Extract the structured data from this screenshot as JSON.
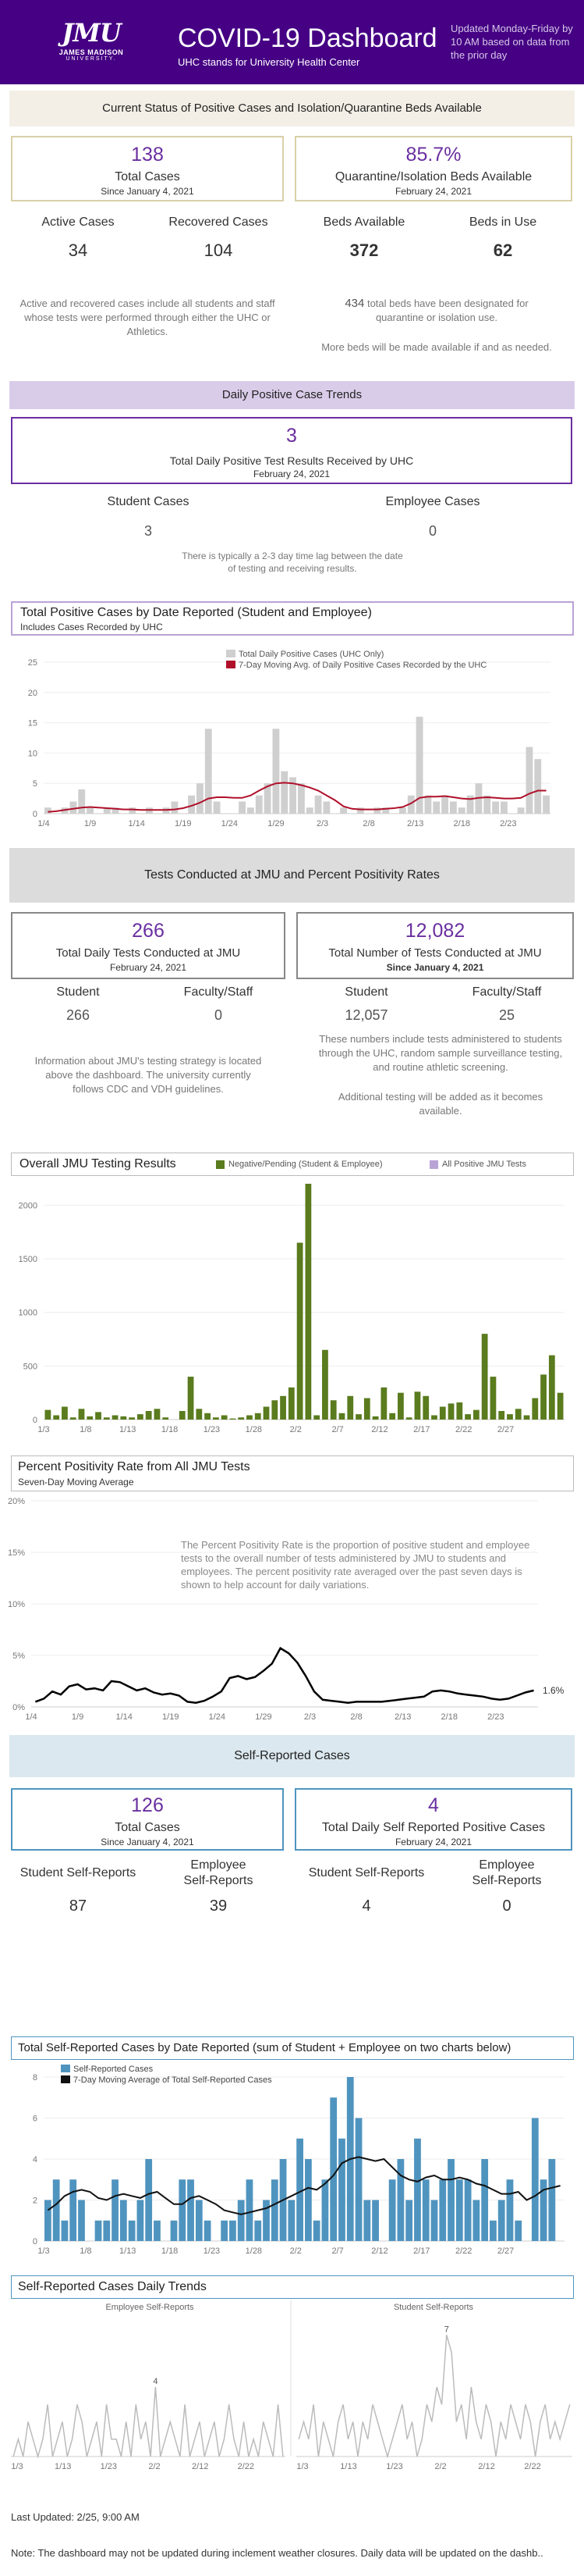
{
  "header": {
    "logo_main": "JMU",
    "logo_line1": "JAMES MADISON",
    "logo_line2": "UNIVERSITY.",
    "title": "COVID-19 Dashboard",
    "subtitle": "UHC stands for University Health Center",
    "updated": "Updated Monday-Friday by 10 AM based on data from the prior day"
  },
  "current_status": {
    "heading": "Current Status of Positive Cases and Isolation/Quarantine Beds Available",
    "total_cases": "138",
    "total_cases_label": "Total Cases",
    "total_cases_since": "Since January 4, 2021",
    "quarantine_pct": "85.7%",
    "quarantine_label": "Quarantine/Isolation Beds Available",
    "quarantine_date": "February 24, 2021",
    "active_label": "Active Cases",
    "active_value": "34",
    "recovered_label": "Recovered Cases",
    "recovered_value": "104",
    "beds_available_label": "Beds Available",
    "beds_available_value": "372",
    "beds_in_use_label": "Beds in Use",
    "beds_in_use_value": "62",
    "cases_note": "Active and recovered cases include all students and staff whose tests were performed through either the UHC or Athletics.",
    "beds_note_num": "434",
    "beds_note_text": " total beds have been designated for quarantine or isolation use.",
    "beds_note2": "More beds will be made available if and as needed."
  },
  "daily_trends": {
    "heading": "Daily Positive Case Trends",
    "value": "3",
    "label": "Total Daily Positive Test Results Received by UHC",
    "date": "February 24, 2021",
    "student_label": "Student Cases",
    "student_value": "3",
    "employee_label": "Employee Cases",
    "employee_value": "0",
    "note": "There is typically a 2-3 day time lag between the date of testing and receiving results."
  },
  "chart1": {
    "title": "Total Positive Cases by Date Reported (Student and Employee)",
    "subtitle": "Includes Cases Recorded by UHC",
    "legend_bar": "Total Daily Positive Cases (UHC Only)",
    "legend_line": "7-Day Moving Avg. of Daily Positive Cases Recorded by the UHC",
    "bar_color": "#cfcfcf",
    "line_color": "#b0102a"
  },
  "testing": {
    "heading": "Tests Conducted at JMU and Percent Positivity Rates",
    "daily_value": "266",
    "daily_label": "Total Daily Tests Conducted at JMU",
    "daily_date": "February 24, 2021",
    "total_value": "12,082",
    "total_label": "Total Number of Tests Conducted at JMU",
    "total_since": "Since January 4, 2021",
    "student_label": "Student",
    "student_value": "266",
    "faculty_label": "Faculty/Staff",
    "faculty_value": "0",
    "student_total_label": "Student",
    "student_total_value": "12,057",
    "faculty_total_label": "Faculty/Staff",
    "faculty_total_value": "25",
    "note_left": "Information about JMU's testing strategy is located above the dashboard. The university currently follows CDC and VDH guidelines.",
    "note_right1": "These numbers include tests administered to students through the UHC, random sample surveillance testing, and routine athletic screening.",
    "note_right2": "Additional testing will be added as it becomes available."
  },
  "chart2": {
    "title": "Overall JMU Testing Results",
    "legend_green": "Negative/Pending (Student & Employee)",
    "legend_purple": "All Positive JMU Tests",
    "green_color": "#5a7b1e",
    "purple_color": "#b9a3d6"
  },
  "chart3": {
    "title": "Percent Positivity Rate from All JMU Tests",
    "subtitle": "Seven-Day Moving Average",
    "note": "The Percent Positivity Rate is the proportion of positive student and employee tests to the overall number of tests administered by JMU to students and employees.   The percent positivity rate averaged over the past seven days is shown to help account for daily variations.",
    "last_label": "1.6%"
  },
  "self_reported": {
    "heading": "Self-Reported Cases",
    "total_value": "126",
    "total_label": "Total Cases",
    "total_since": "Since January 4, 2021",
    "daily_value": "4",
    "daily_label": "Total Daily Self Reported Positive Cases",
    "daily_date": "February 24, 2021",
    "student_label": "Student Self-Reports",
    "student_value": "87",
    "employee_label1": "Employee",
    "employee_label2": "Self-Reports",
    "employee_value": "39",
    "student_daily_label": "Student Self-Reports",
    "student_daily_value": "4",
    "employee_daily_label1": "Employee",
    "employee_daily_label2": "Self-Reports",
    "employee_daily_value": "0"
  },
  "chart4": {
    "title": "Total Self-Reported Cases by Date Reported (sum of Student + Employee on two charts below)",
    "legend_bar": "Self-Reported Cases",
    "legend_line": "7-Day Moving Average of Total Self-Reported Cases",
    "bar_color": "#4f94bf"
  },
  "chart5": {
    "title": "Self-Reported Cases Daily Trends",
    "left_label": "Employee Self-Reports",
    "right_label": "Student Self-Reports",
    "left_peak": "4",
    "right_peak": "7"
  },
  "footer": {
    "last_updated": "Last Updated: 2/25, 9:00 AM",
    "note": "Note: The dashboard may not be updated during inclement weather closures. Daily data will be updated on the dashb.."
  },
  "chart_data": [
    {
      "type": "bar",
      "title": "Total Positive Cases by Date Reported (Student and Employee)",
      "x_ticks": [
        "1/4",
        "1/9",
        "1/14",
        "1/19",
        "1/24",
        "1/29",
        "2/3",
        "2/8",
        "2/13",
        "2/18",
        "2/23"
      ],
      "ylim": [
        0,
        25
      ],
      "y_ticks": [
        0,
        5,
        10,
        15,
        20,
        25
      ],
      "series": [
        {
          "name": "Total Daily Positive Cases (UHC Only)",
          "type": "bar",
          "values": [
            1,
            0,
            1,
            2,
            4,
            1,
            0,
            1,
            1,
            0,
            1,
            0,
            1,
            0,
            1,
            2,
            0,
            3,
            5,
            14,
            2,
            0,
            0,
            2,
            1,
            3,
            5,
            14,
            7,
            6,
            5,
            1,
            3,
            2,
            0,
            1,
            0,
            1,
            0,
            1,
            1,
            0,
            1,
            3,
            16,
            3,
            2,
            3,
            2,
            1,
            3,
            5,
            3,
            2,
            2,
            0,
            1,
            11,
            9,
            3
          ]
        },
        {
          "name": "7-Day Moving Avg. of Daily Positive Cases Recorded by the UHC",
          "type": "line",
          "values": [
            0.3,
            0.4,
            0.6,
            0.8,
            1.0,
            1.1,
            1.0,
            0.9,
            0.8,
            0.7,
            0.7,
            0.6,
            0.6,
            0.6,
            0.6,
            0.7,
            0.9,
            1.3,
            1.8,
            2.5,
            2.7,
            2.7,
            2.6,
            2.6,
            3.0,
            3.8,
            4.5,
            5.0,
            5.1,
            5.0,
            4.7,
            4.3,
            3.8,
            3.0,
            2.2,
            1.2,
            0.8,
            0.7,
            0.7,
            0.7,
            0.8,
            0.9,
            1.1,
            1.7,
            2.6,
            2.8,
            2.8,
            2.9,
            2.7,
            2.5,
            2.4,
            2.6,
            2.7,
            2.6,
            2.5,
            2.5,
            2.6,
            3.3,
            3.8,
            3.8
          ]
        }
      ]
    },
    {
      "type": "bar",
      "title": "Overall JMU Testing Results",
      "x_ticks": [
        "1/3",
        "1/8",
        "1/13",
        "1/18",
        "1/23",
        "1/28",
        "2/2",
        "2/7",
        "2/12",
        "2/17",
        "2/22",
        "2/27"
      ],
      "ylim": [
        0,
        2200
      ],
      "y_ticks": [
        0,
        500,
        1000,
        1500,
        2000
      ],
      "series": [
        {
          "name": "Negative/Pending (Student & Employee)",
          "values": [
            90,
            40,
            120,
            20,
            100,
            30,
            70,
            20,
            40,
            30,
            20,
            50,
            80,
            100,
            20,
            0,
            80,
            400,
            100,
            60,
            20,
            40,
            10,
            20,
            40,
            60,
            120,
            180,
            220,
            300,
            1650,
            2200,
            40,
            650,
            180,
            60,
            220,
            50,
            200,
            30,
            300,
            60,
            250,
            20,
            260,
            220,
            40,
            120,
            150,
            160,
            50,
            90,
            800,
            400,
            80,
            50,
            100,
            40,
            200,
            420,
            600,
            250
          ]
        }
      ]
    },
    {
      "type": "line",
      "title": "Percent Positivity Rate from All JMU Tests",
      "x_ticks": [
        "1/4",
        "1/9",
        "1/14",
        "1/19",
        "1/24",
        "1/29",
        "2/3",
        "2/8",
        "2/13",
        "2/18",
        "2/23"
      ],
      "ylim": [
        0,
        20
      ],
      "y_ticks": [
        "0%",
        "5%",
        "10%",
        "15%",
        "20%"
      ],
      "series": [
        {
          "name": "Seven-Day Moving Average",
          "values": [
            0.5,
            0.8,
            1.5,
            1.2,
            2.0,
            2.2,
            1.7,
            1.8,
            1.6,
            2.5,
            2.4,
            2.0,
            1.6,
            1.8,
            1.4,
            1.2,
            1.3,
            1.1,
            0.5,
            0.4,
            0.6,
            1.0,
            1.5,
            2.8,
            3.0,
            2.7,
            2.9,
            3.5,
            4.2,
            5.7,
            5.2,
            4.3,
            3.0,
            1.5,
            0.7,
            0.6,
            0.5,
            0.4,
            0.5,
            0.5,
            0.5,
            0.5,
            0.6,
            0.7,
            0.8,
            0.9,
            1.0,
            1.5,
            1.6,
            1.5,
            1.3,
            1.2,
            1.1,
            1.0,
            0.8,
            0.7,
            0.8,
            1.1,
            1.4,
            1.6
          ]
        }
      ]
    },
    {
      "type": "bar",
      "title": "Total Self-Reported Cases by Date Reported",
      "x_ticks": [
        "1/3",
        "1/8",
        "1/13",
        "1/18",
        "1/23",
        "1/28",
        "2/2",
        "2/7",
        "2/12",
        "2/17",
        "2/22",
        "2/27"
      ],
      "ylim": [
        0,
        8
      ],
      "y_ticks": [
        0,
        2,
        4,
        6,
        8
      ],
      "series": [
        {
          "name": "Self-Reported Cases",
          "type": "bar",
          "values": [
            2,
            3,
            1,
            3,
            2,
            0,
            1,
            1,
            3,
            2,
            1,
            2,
            4,
            1,
            0,
            1,
            3,
            3,
            2,
            1,
            0,
            1,
            1,
            2,
            3,
            1,
            2,
            3,
            4,
            2,
            5,
            4,
            1,
            3,
            7,
            5,
            8,
            6,
            2,
            2,
            0,
            3,
            4,
            2,
            5,
            3,
            2,
            3,
            4,
            3,
            3,
            2,
            4,
            1,
            2,
            3,
            1,
            0,
            6,
            3,
            4,
            0
          ]
        },
        {
          "name": "7-Day Moving Average of Total Self-Reported Cases",
          "type": "line",
          "values": [
            1.5,
            1.8,
            2.2,
            2.4,
            2.5,
            2.4,
            2.1,
            2.0,
            2.2,
            2.3,
            2.2,
            2.1,
            2.3,
            2.4,
            2.1,
            1.8,
            1.8,
            2.1,
            2.2,
            2.0,
            1.8,
            1.5,
            1.4,
            1.3,
            1.4,
            1.5,
            1.6,
            1.8,
            2.0,
            2.2,
            2.4,
            2.6,
            2.5,
            2.8,
            3.2,
            3.8,
            4.0,
            4.1,
            4.0,
            3.9,
            4.0,
            3.6,
            3.2,
            3.0,
            2.9,
            3.1,
            3.2,
            3.0,
            3.0,
            3.1,
            3.0,
            2.8,
            2.7,
            2.5,
            2.3,
            2.3,
            2.4,
            2.0,
            2.2,
            2.5,
            2.6,
            2.7
          ]
        }
      ]
    },
    {
      "type": "line",
      "title": "Self-Reported Cases Daily Trends",
      "panels": [
        {
          "name": "Employee Self-Reports",
          "x_ticks": [
            "1/3",
            "1/13",
            "1/23",
            "2/2",
            "2/12",
            "2/22"
          ],
          "values": [
            0,
            1,
            0,
            2,
            1,
            0,
            1,
            3,
            0,
            1,
            2,
            0,
            1,
            3,
            2,
            0,
            1,
            2,
            0,
            3,
            1,
            1,
            0,
            2,
            0,
            3,
            1,
            2,
            0,
            4,
            0,
            1,
            2,
            1,
            0,
            3,
            0,
            1,
            2,
            0,
            1,
            2,
            0,
            1,
            3,
            1,
            0,
            2,
            0,
            1,
            0,
            2,
            1,
            0,
            3,
            0
          ]
        },
        {
          "name": "Student Self-Reports",
          "x_ticks": [
            "1/3",
            "1/13",
            "1/23",
            "2/2",
            "2/12",
            "2/22"
          ],
          "values": [
            1,
            2,
            1,
            3,
            0,
            2,
            1,
            0,
            2,
            3,
            1,
            2,
            0,
            2,
            1,
            3,
            2,
            1,
            0,
            1,
            2,
            3,
            1,
            2,
            0,
            1,
            3,
            2,
            4,
            3,
            7,
            6,
            2,
            3,
            1,
            4,
            2,
            1,
            3,
            2,
            0,
            2,
            1,
            3,
            2,
            1,
            3,
            2,
            0,
            2,
            3,
            1,
            2,
            1,
            2,
            3
          ]
        }
      ]
    }
  ]
}
